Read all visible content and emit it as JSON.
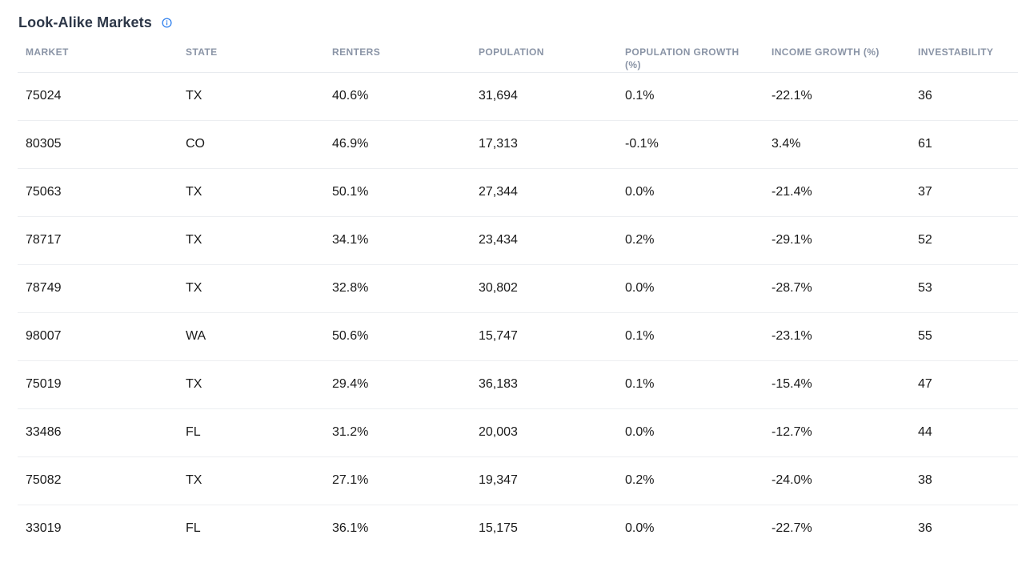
{
  "title": "Look-Alike Markets",
  "icons": {
    "info": "info-circle-icon",
    "accent": "#2f80ed"
  },
  "columns": [
    "MARKET",
    "STATE",
    "RENTERS",
    "POPULATION",
    "POPULATION GROWTH (%)",
    "INCOME GROWTH (%)",
    "INVESTABILITY"
  ],
  "rows": [
    [
      "75024",
      "TX",
      "40.6%",
      "31,694",
      "0.1%",
      "-22.1%",
      "36"
    ],
    [
      "80305",
      "CO",
      "46.9%",
      "17,313",
      "-0.1%",
      "3.4%",
      "61"
    ],
    [
      "75063",
      "TX",
      "50.1%",
      "27,344",
      "0.0%",
      "-21.4%",
      "37"
    ],
    [
      "78717",
      "TX",
      "34.1%",
      "23,434",
      "0.2%",
      "-29.1%",
      "52"
    ],
    [
      "78749",
      "TX",
      "32.8%",
      "30,802",
      "0.0%",
      "-28.7%",
      "53"
    ],
    [
      "98007",
      "WA",
      "50.6%",
      "15,747",
      "0.1%",
      "-23.1%",
      "55"
    ],
    [
      "75019",
      "TX",
      "29.4%",
      "36,183",
      "0.1%",
      "-15.4%",
      "47"
    ],
    [
      "33486",
      "FL",
      "31.2%",
      "20,003",
      "0.0%",
      "-12.7%",
      "44"
    ],
    [
      "75082",
      "TX",
      "27.1%",
      "19,347",
      "0.2%",
      "-24.0%",
      "38"
    ],
    [
      "33019",
      "FL",
      "36.1%",
      "15,175",
      "0.0%",
      "-22.7%",
      "36"
    ]
  ]
}
